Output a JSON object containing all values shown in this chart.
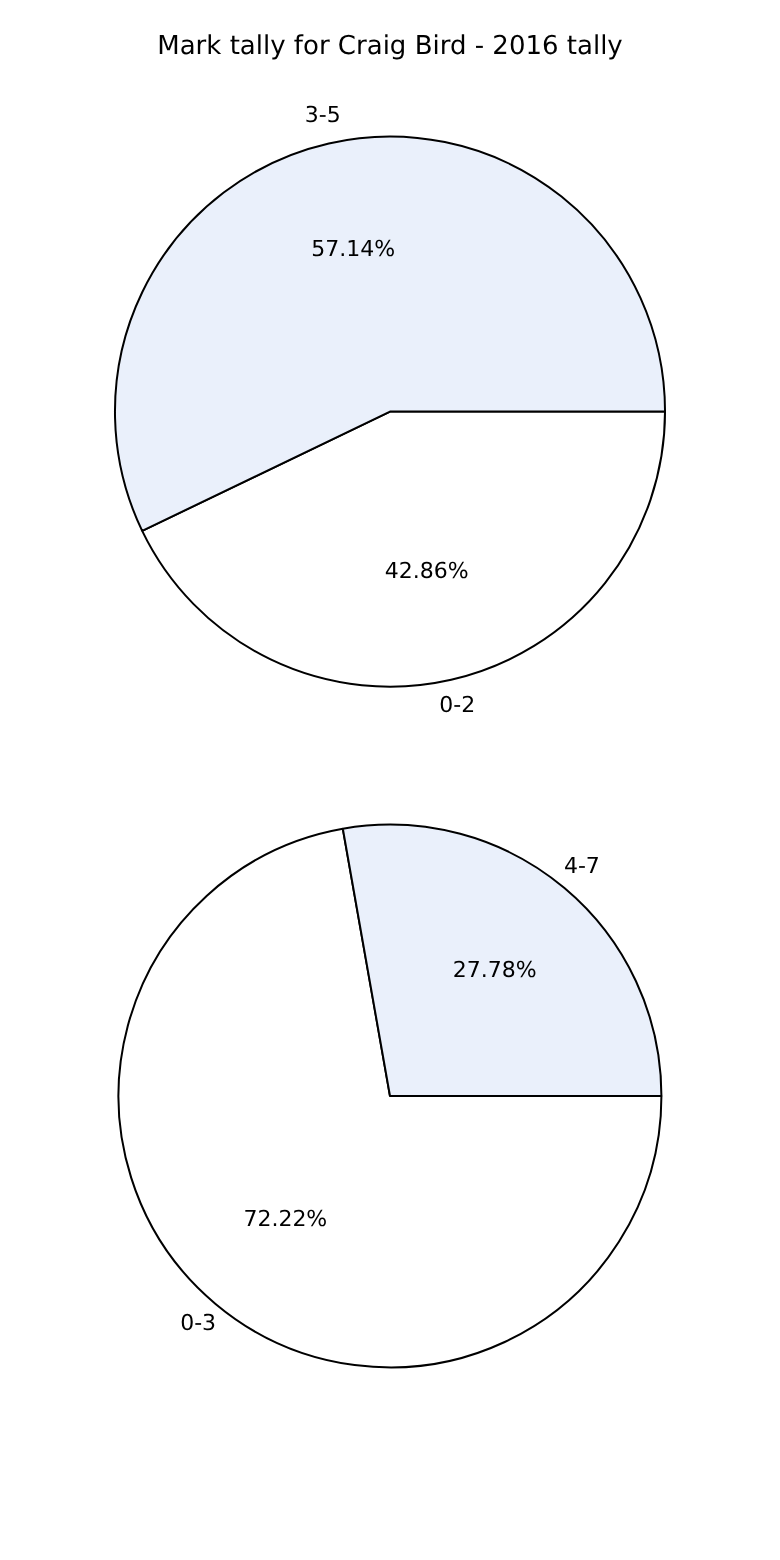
{
  "chart_data": [
    {
      "type": "pie",
      "title": "Mark tally for Craig Bird - 2016 tally",
      "categories": [
        "0-2",
        "3-5"
      ],
      "values": [
        42.86,
        57.14
      ],
      "colors": [
        "#ffffff",
        "#eaf0fb"
      ],
      "value_labels": [
        "42.86%",
        "57.14%"
      ]
    },
    {
      "type": "pie",
      "categories": [
        "0-3",
        "4-7"
      ],
      "values": [
        72.22,
        27.78
      ],
      "colors": [
        "#ffffff",
        "#eaf0fb"
      ],
      "value_labels": [
        "72.22%",
        "27.78%"
      ]
    }
  ]
}
